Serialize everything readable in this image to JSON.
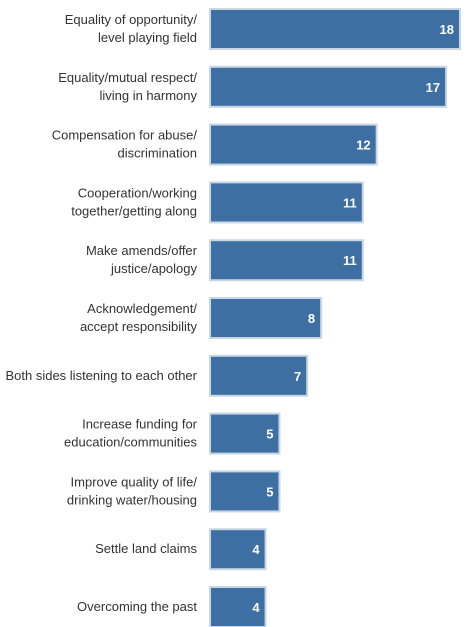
{
  "chart_data": {
    "type": "bar",
    "orientation": "horizontal",
    "categories": [
      [
        "Equality of opportunity/",
        "level playing field"
      ],
      [
        "Equality/mutual respect/",
        "living in harmony"
      ],
      [
        "Compensation for abuse/",
        "discrimination"
      ],
      [
        "Cooperation/working",
        "together/getting along"
      ],
      [
        "Make amends/offer",
        "justice/apology"
      ],
      [
        "Acknowledgement/",
        "accept responsibility"
      ],
      [
        "Both sides listening to each other"
      ],
      [
        "Increase funding for",
        "education/communities"
      ],
      [
        "Improve quality of life/",
        "drinking water/housing"
      ],
      [
        "Settle land claims"
      ],
      [
        "Overcoming the past"
      ]
    ],
    "values": [
      18,
      17,
      12,
      11,
      11,
      8,
      7,
      5,
      5,
      4,
      4
    ],
    "title": "",
    "xlabel": "",
    "ylabel": "",
    "xlim": [
      0,
      18
    ],
    "grid": false,
    "legend": "none",
    "bar_color": "#3d6fa3",
    "bar_border_color": "#c9d6e3",
    "value_label_color": "#ffffff",
    "category_label_color": "#333333"
  }
}
